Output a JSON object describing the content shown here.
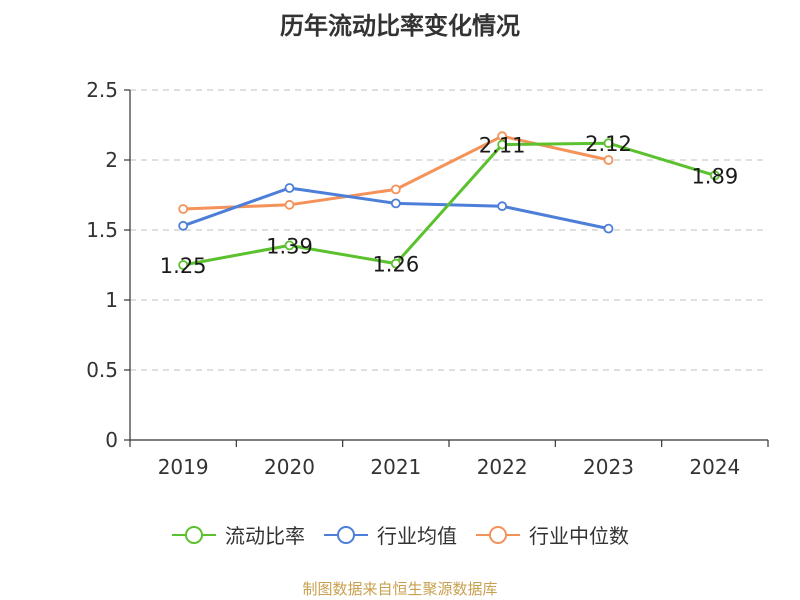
{
  "chart_data": {
    "type": "line",
    "title": "历年流动比率变化情况",
    "categories": [
      "2019",
      "2020",
      "2021",
      "2022",
      "2023",
      "2024"
    ],
    "ylim": [
      0,
      2.5
    ],
    "yticks": [
      "0",
      "0.5",
      "1",
      "1.5",
      "2",
      "2.5"
    ],
    "grid": true,
    "legend_position": "bottom",
    "series": [
      {
        "name": "流动比率",
        "color": "#5cc12e",
        "values": [
          1.25,
          1.39,
          1.26,
          2.11,
          2.12,
          1.89
        ],
        "labels": [
          "1.25",
          "1.39",
          "1.26",
          "2.11",
          "2.12",
          "1.89"
        ]
      },
      {
        "name": "行业均值",
        "color": "#4e7fd8",
        "values": [
          1.53,
          1.8,
          1.69,
          1.67,
          1.51,
          null
        ]
      },
      {
        "name": "行业中位数",
        "color": "#f4925a",
        "values": [
          1.65,
          1.68,
          1.79,
          2.17,
          2.0,
          null
        ]
      }
    ]
  },
  "source": "制图数据来自恒生聚源数据库"
}
